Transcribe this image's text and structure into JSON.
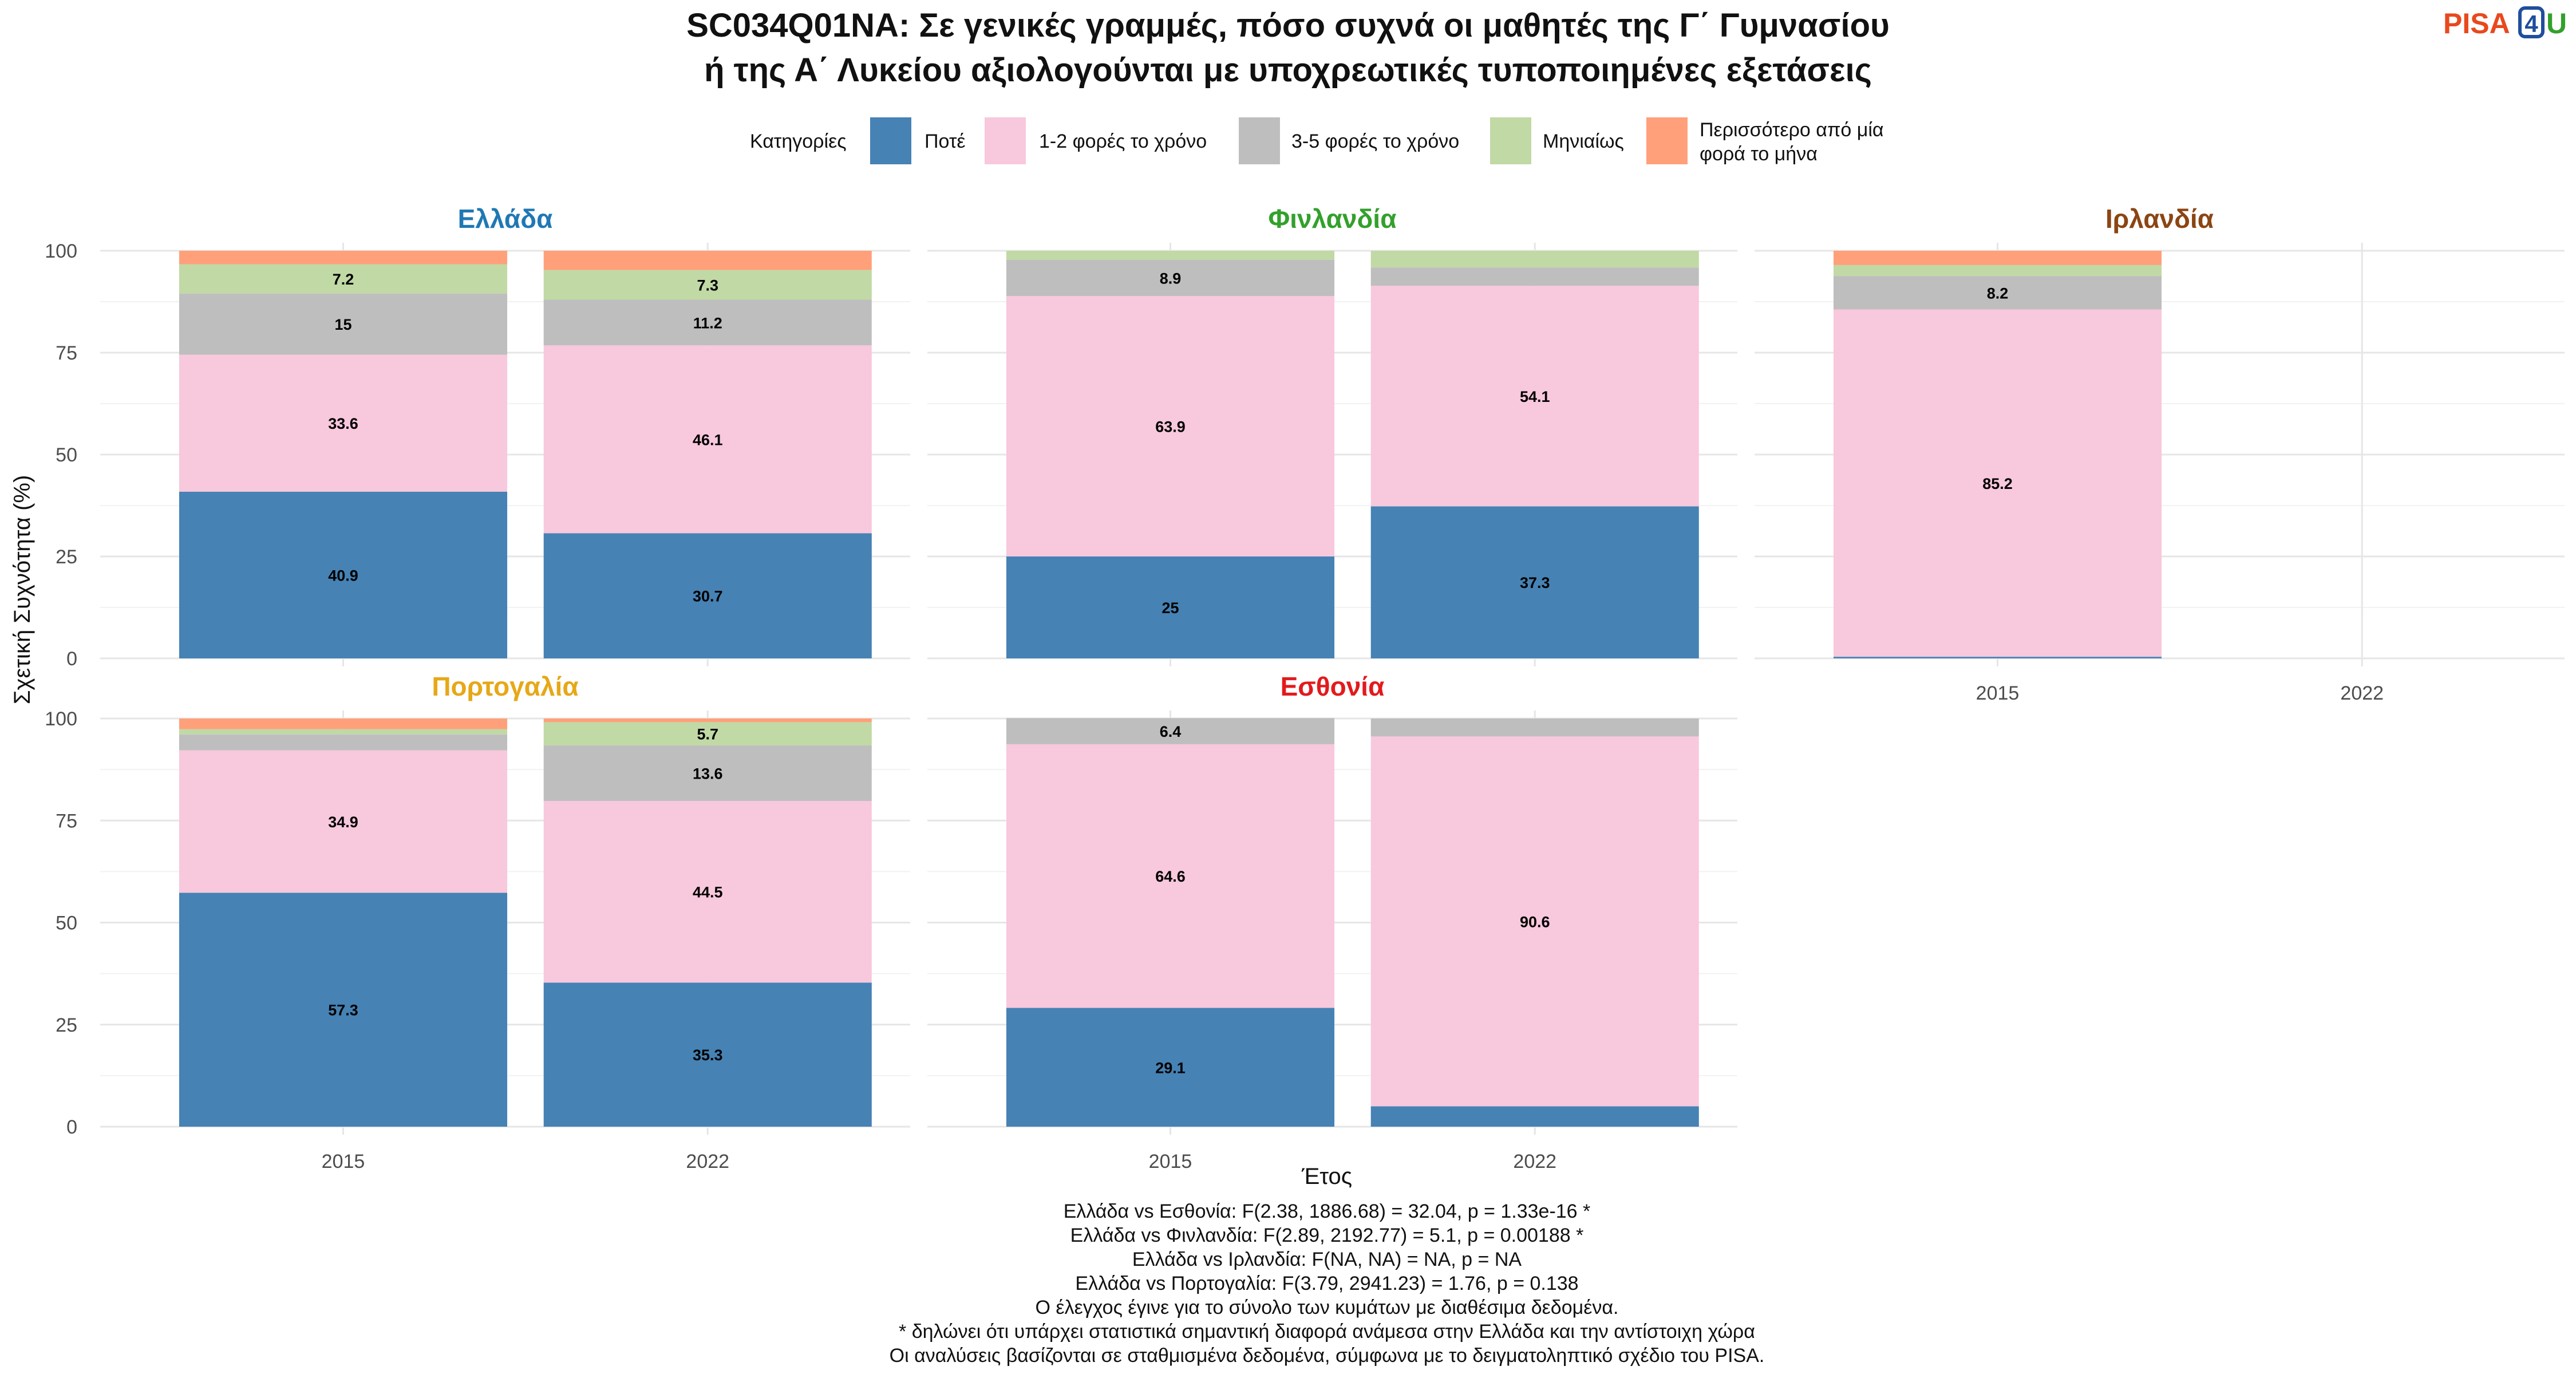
{
  "chart_data": {
    "type": "bar",
    "stacked": true,
    "title_line1": "SC034Q01NA: Σε γενικές γραμμές, πόσο συχνά οι μαθητές της Γ΄ Γυμνασίου",
    "title_line2": "ή της Α΄ Λυκείου αξιολογούνται με υποχρεωτικές τυποποιημένες εξετάσεις",
    "logo": {
      "text": "PISA",
      "digit": "4",
      "letter": "U"
    },
    "legend": {
      "title": "Κατηγορίες",
      "position": "top",
      "items": [
        {
          "label": "Ποτέ",
          "color": "#4682B4"
        },
        {
          "label": "1-2 φορές το χρόνο",
          "color": "#F8C8DC"
        },
        {
          "label": "3-5 φορές το χρόνο",
          "color": "#BEBEBE"
        },
        {
          "label": "Μηνιαίως",
          "color": "#C1D9A5"
        },
        {
          "label": "Περισσότερο από μία φορά το μήνα",
          "label_line1": "Περισσότερο από μία",
          "label_line2": "φορά το μήνα",
          "color": "#FFA07A"
        }
      ]
    },
    "xlabel": "Έτος",
    "ylabel": "Σχετική Συχνότητα (%)",
    "ylim": [
      0,
      100
    ],
    "yticks": [
      "0",
      "25",
      "50",
      "75",
      "100"
    ],
    "categories": [
      "2015",
      "2022"
    ],
    "grid": true,
    "panels": [
      {
        "title": "Ελλάδα",
        "title_color": "#1F78B4",
        "bars": [
          {
            "year": "2015",
            "segments": [
              {
                "value": 40.9,
                "label": "40.9"
              },
              {
                "value": 33.6,
                "label": "33.6"
              },
              {
                "value": 15.0,
                "label": "15"
              },
              {
                "value": 7.2,
                "label": "7.2"
              },
              {
                "value": 3.3,
                "label": ""
              }
            ]
          },
          {
            "year": "2022",
            "segments": [
              {
                "value": 30.7,
                "label": "30.7"
              },
              {
                "value": 46.1,
                "label": "46.1"
              },
              {
                "value": 11.2,
                "label": "11.2"
              },
              {
                "value": 7.3,
                "label": "7.3"
              },
              {
                "value": 4.7,
                "label": ""
              }
            ]
          }
        ]
      },
      {
        "title": "Φινλανδία",
        "title_color": "#33A02C",
        "bars": [
          {
            "year": "2015",
            "segments": [
              {
                "value": 25.0,
                "label": "25"
              },
              {
                "value": 63.9,
                "label": "63.9"
              },
              {
                "value": 8.9,
                "label": "8.9"
              },
              {
                "value": 2.2,
                "label": ""
              },
              {
                "value": 0.0,
                "label": ""
              }
            ]
          },
          {
            "year": "2022",
            "segments": [
              {
                "value": 37.3,
                "label": "37.3"
              },
              {
                "value": 54.1,
                "label": "54.1"
              },
              {
                "value": 4.5,
                "label": ""
              },
              {
                "value": 4.1,
                "label": ""
              },
              {
                "value": 0.0,
                "label": ""
              }
            ]
          }
        ]
      },
      {
        "title": "Ιρλανδία",
        "title_color": "#8B4513",
        "bars": [
          {
            "year": "2015",
            "segments": [
              {
                "value": 0.4,
                "label": ""
              },
              {
                "value": 85.2,
                "label": "85.2"
              },
              {
                "value": 8.2,
                "label": "8.2"
              },
              {
                "value": 2.7,
                "label": ""
              },
              {
                "value": 3.5,
                "label": ""
              }
            ]
          },
          {
            "year": "2022",
            "segments": []
          }
        ]
      },
      {
        "title": "Πορτογαλία",
        "title_color": "#E6A817",
        "bars": [
          {
            "year": "2015",
            "segments": [
              {
                "value": 57.3,
                "label": "57.3"
              },
              {
                "value": 34.9,
                "label": "34.9"
              },
              {
                "value": 3.9,
                "label": ""
              },
              {
                "value": 1.3,
                "label": ""
              },
              {
                "value": 2.6,
                "label": ""
              }
            ]
          },
          {
            "year": "2022",
            "segments": [
              {
                "value": 35.3,
                "label": "35.3"
              },
              {
                "value": 44.5,
                "label": "44.5"
              },
              {
                "value": 13.6,
                "label": "13.6"
              },
              {
                "value": 5.7,
                "label": "5.7"
              },
              {
                "value": 0.9,
                "label": ""
              }
            ]
          }
        ]
      },
      {
        "title": "Εσθονία",
        "title_color": "#E31A1C",
        "bars": [
          {
            "year": "2015",
            "segments": [
              {
                "value": 29.1,
                "label": "29.1"
              },
              {
                "value": 64.6,
                "label": "64.6"
              },
              {
                "value": 6.4,
                "label": "6.4"
              },
              {
                "value": 0.0,
                "label": ""
              },
              {
                "value": 0.0,
                "label": ""
              }
            ]
          },
          {
            "year": "2022",
            "segments": [
              {
                "value": 5.0,
                "label": ""
              },
              {
                "value": 90.6,
                "label": "90.6"
              },
              {
                "value": 4.4,
                "label": ""
              },
              {
                "value": 0.0,
                "label": ""
              },
              {
                "value": 0.0,
                "label": ""
              }
            ]
          }
        ]
      }
    ],
    "notes": [
      "Ελλάδα vs Εσθονία: F(2.38, 1886.68) = 32.04, p = 1.33e-16 *",
      "Ελλάδα vs Φινλανδία: F(2.89, 2192.77) = 5.1, p = 0.00188 *",
      "Ελλάδα vs Ιρλανδία: F(NA, NA) = NA, p = NA",
      "Ελλάδα vs Πορτογαλία: F(3.79, 2941.23) = 1.76, p = 0.138",
      "Ο έλεγχος έγινε για το σύνολο των κυμάτων με διαθέσιμα δεδομένα.",
      "* δηλώνει ότι υπάρχει στατιστικά σημαντική διαφορά ανάμεσα στην Ελλάδα και την αντίστοιχη χώρα",
      "Οι αναλύσεις βασίζονται σε σταθμισμένα δεδομένα, σύμφωνα με το δειγματοληπτικό σχέδιο του PISA."
    ]
  }
}
